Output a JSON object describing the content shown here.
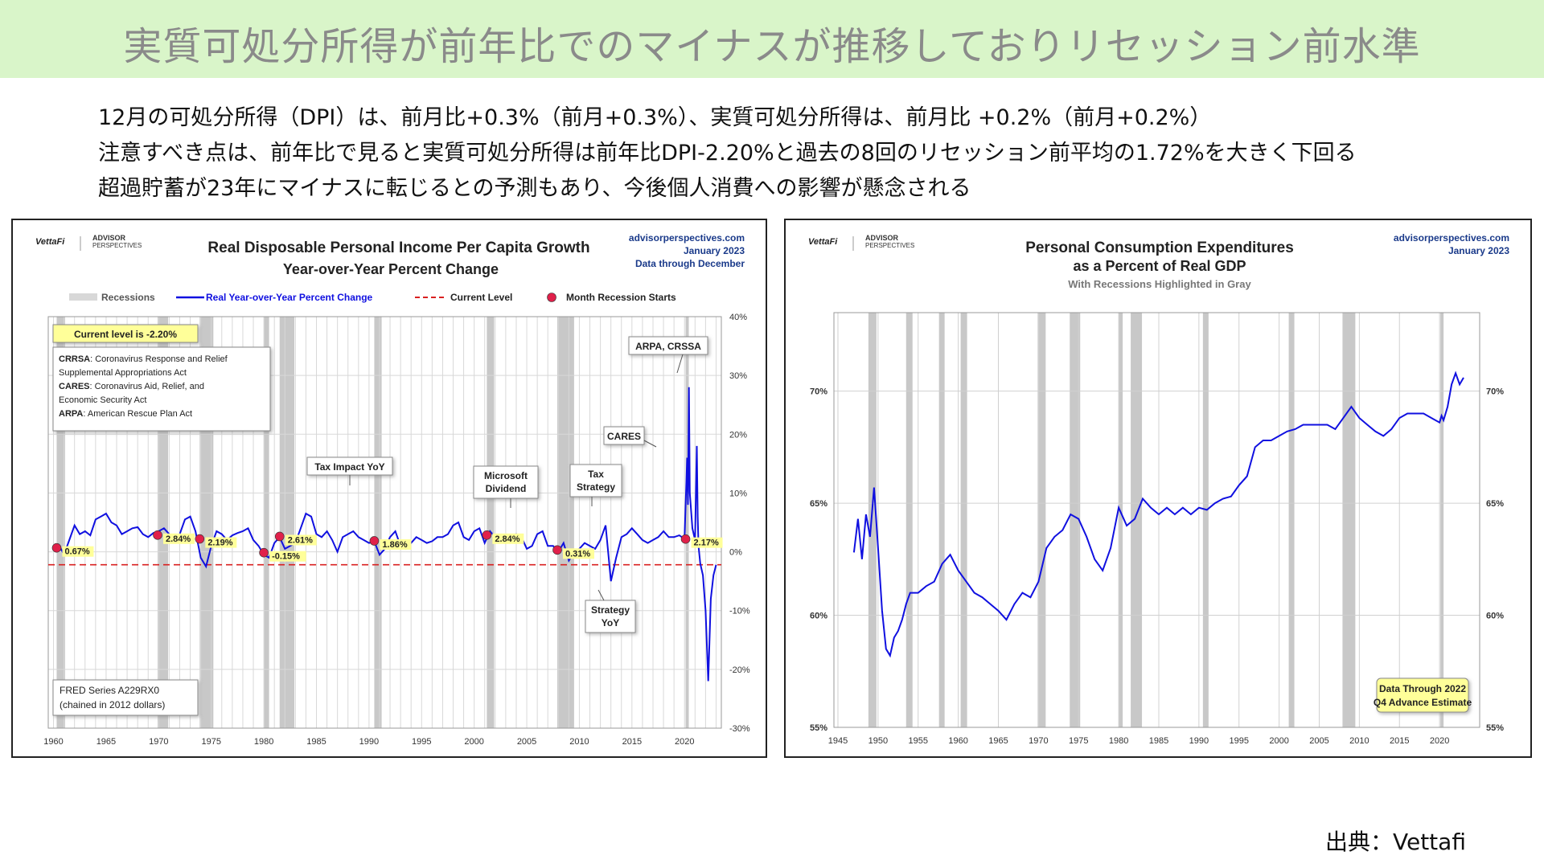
{
  "banner": {
    "title": "実質可処分所得が前年比でのマイナスが推移しておりリセッション前水準"
  },
  "description": {
    "line1": "12月の可処分所得（DPI）は、前月比+0.3%（前月+0.3%）、実質可処分所得は、前月比 +0.2%（前月+0.2%）",
    "line2": "注意すべき点は、前年比で見ると実質可処分所得は前年比DPI-2.20%と過去の8回のリセッション前平均の1.72%を大きく下回る",
    "line3": "超過貯蓄が23年にマイナスに転じるとの予測もあり、今後個人消費への影響が懸念される"
  },
  "source": "出典：Vettafi",
  "colors": {
    "banner_bg": "#d9f5c9",
    "series": "#1010e0",
    "current_level": "#d92020",
    "recession": "#c8c8c8",
    "marker": "#e0204a",
    "callout_yellow": "#ffff99"
  },
  "chart_data": [
    {
      "type": "line",
      "brand": {
        "vettafi": "VettaFi",
        "advisor": "ADVISOR",
        "perspectives": "PERSPECTIVES"
      },
      "title": "Real Disposable Personal Income Per Capita Growth",
      "subtitle": "Year-over-Year Percent Change",
      "site": "advisorperspectives.com",
      "date": "January 2023",
      "data_through": "Data through December",
      "legend": [
        "Recessions",
        "Real Year-over-Year Percent Change",
        "Current Level",
        "Month Recession Starts"
      ],
      "xlim": [
        1959.5,
        2023.5
      ],
      "ylim": [
        -30,
        40
      ],
      "x_ticks": [
        1960,
        1965,
        1970,
        1975,
        1980,
        1985,
        1990,
        1995,
        2000,
        2005,
        2010,
        2015,
        2020
      ],
      "y_ticks": [
        40,
        30,
        20,
        10,
        0,
        -10,
        -20,
        -30
      ],
      "y_tick_labels": [
        "40%",
        "30%",
        "20%",
        "10%",
        "0%",
        "-10%",
        "-20%",
        "-30%"
      ],
      "current_level": -2.2,
      "current_level_label": "Current level is -2.20%",
      "recessions": [
        [
          1960.3,
          1961.1
        ],
        [
          1969.9,
          1970.9
        ],
        [
          1973.9,
          1975.2
        ],
        [
          1980.0,
          1980.5
        ],
        [
          1981.5,
          1982.9
        ],
        [
          1990.5,
          1991.2
        ],
        [
          2001.2,
          2001.9
        ],
        [
          2007.9,
          2009.5
        ],
        [
          2020.1,
          2020.3
        ]
      ],
      "recession_starts": [
        {
          "x": 1960.3,
          "y": 0.67,
          "label": "0.67%"
        },
        {
          "x": 1969.9,
          "y": 2.84,
          "label": "2.84%"
        },
        {
          "x": 1973.9,
          "y": 2.19,
          "label": "2.19%"
        },
        {
          "x": 1980.0,
          "y": -0.15,
          "label": "-0.15%"
        },
        {
          "x": 1981.5,
          "y": 2.61,
          "label": "2.61%"
        },
        {
          "x": 1990.5,
          "y": 1.86,
          "label": "1.86%"
        },
        {
          "x": 2001.2,
          "y": 2.84,
          "label": "2.84%"
        },
        {
          "x": 2007.9,
          "y": 0.31,
          "label": "0.31%"
        },
        {
          "x": 2020.1,
          "y": 2.17,
          "label": "2.17%"
        }
      ],
      "series": [
        {
          "name": "Real Year-over-Year Percent Change",
          "x": [
            1960.0,
            1960.5,
            1961.0,
            1961.5,
            1962.0,
            1962.5,
            1963.0,
            1963.5,
            1964.0,
            1964.5,
            1965.0,
            1965.5,
            1966.0,
            1966.5,
            1967.0,
            1967.5,
            1968.0,
            1968.5,
            1969.0,
            1969.5,
            1970.0,
            1970.5,
            1971.0,
            1971.5,
            1972.0,
            1972.5,
            1973.0,
            1973.5,
            1974.0,
            1974.5,
            1975.0,
            1975.5,
            1976.0,
            1976.5,
            1977.0,
            1977.5,
            1978.0,
            1978.5,
            1979.0,
            1979.5,
            1980.0,
            1980.5,
            1981.0,
            1981.5,
            1982.0,
            1982.5,
            1983.0,
            1983.5,
            1984.0,
            1984.5,
            1985.0,
            1985.5,
            1986.0,
            1986.5,
            1987.0,
            1987.5,
            1988.0,
            1988.5,
            1989.0,
            1989.5,
            1990.0,
            1990.5,
            1991.0,
            1991.5,
            1992.0,
            1992.5,
            1993.0,
            1993.5,
            1994.0,
            1994.5,
            1995.0,
            1995.5,
            1996.0,
            1996.5,
            1997.0,
            1997.5,
            1998.0,
            1998.5,
            1999.0,
            1999.5,
            2000.0,
            2000.5,
            2001.0,
            2001.5,
            2002.0,
            2002.5,
            2003.0,
            2003.5,
            2004.0,
            2004.5,
            2005.0,
            2005.5,
            2006.0,
            2006.5,
            2007.0,
            2007.5,
            2008.0,
            2008.5,
            2009.0,
            2009.5,
            2010.0,
            2010.5,
            2011.0,
            2011.5,
            2012.0,
            2012.5,
            2013.0,
            2013.5,
            2014.0,
            2014.5,
            2015.0,
            2015.5,
            2016.0,
            2016.5,
            2017.0,
            2017.5,
            2018.0,
            2018.5,
            2019.0,
            2019.5,
            2020.0,
            2020.25,
            2020.33,
            2020.42,
            2020.5,
            2020.75,
            2021.0,
            2021.17,
            2021.25,
            2021.33,
            2021.5,
            2021.75,
            2022.0,
            2022.25,
            2022.5,
            2022.75,
            2023.0
          ],
          "y": [
            0.8,
            1.2,
            -0.5,
            2.0,
            4.5,
            3.0,
            3.5,
            2.8,
            5.5,
            6.0,
            6.5,
            5.0,
            4.5,
            3.0,
            3.5,
            4.0,
            4.2,
            3.0,
            2.5,
            3.2,
            3.5,
            4.0,
            3.0,
            2.5,
            3.0,
            5.5,
            6.0,
            3.5,
            -1.0,
            -2.5,
            1.0,
            3.5,
            3.0,
            2.0,
            2.8,
            3.2,
            3.5,
            4.0,
            2.0,
            1.0,
            -0.5,
            -1.0,
            1.5,
            2.5,
            0.5,
            1.0,
            1.5,
            4.0,
            6.5,
            6.0,
            3.0,
            2.5,
            3.5,
            2.0,
            0.0,
            2.5,
            3.0,
            3.5,
            2.5,
            2.0,
            1.5,
            1.8,
            -0.5,
            0.5,
            2.5,
            3.5,
            1.0,
            0.5,
            1.5,
            2.5,
            2.0,
            1.5,
            1.8,
            2.5,
            2.5,
            3.0,
            4.5,
            5.0,
            2.5,
            2.0,
            3.5,
            4.0,
            1.5,
            3.5,
            2.5,
            2.0,
            1.5,
            2.0,
            3.0,
            2.5,
            0.5,
            1.0,
            3.0,
            3.5,
            1.0,
            1.0,
            0.0,
            1.5,
            -1.5,
            0.0,
            0.5,
            1.5,
            1.0,
            0.5,
            2.0,
            4.5,
            -5.0,
            -1.0,
            2.5,
            3.0,
            4.0,
            3.0,
            2.0,
            1.5,
            2.0,
            2.5,
            3.5,
            2.5,
            2.5,
            2.8,
            2.2,
            16.0,
            8.0,
            28.0,
            10.0,
            4.0,
            2.0,
            18.0,
            6.0,
            1.0,
            -2.0,
            -4.0,
            -10.0,
            -22.0,
            -8.0,
            -4.0,
            -2.2
          ]
        }
      ],
      "callouts": {
        "acts": [
          {
            "abbr": "CRRSA",
            "text": ": Coronavirus Response and Relief",
            "cont": "Supplemental Appropriations Act"
          },
          {
            "abbr": "CARES",
            "text": ": Coronavirus Aid, Relief, and",
            "cont": "Economic Security Act"
          },
          {
            "abbr": "ARPA",
            "text": ": American Rescue Plan Act",
            "cont": ""
          }
        ],
        "tax_impact": "Tax Impact YoY",
        "microsoft_line1": "Microsoft",
        "microsoft_line2": "Dividend",
        "tax_strategy_line1": "Tax",
        "tax_strategy_line2": "Strategy",
        "strategy_yoy_line1": "Strategy",
        "strategy_yoy_line2": "YoY",
        "cares": "CARES",
        "arpa": "ARPA, CRSSA",
        "fred_line1": "FRED Series A229RX0",
        "fred_line2": "(chained in 2012 dollars)"
      }
    },
    {
      "type": "line",
      "brand": {
        "vettafi": "VettaFi",
        "advisor": "ADVISOR",
        "perspectives": "PERSPECTIVES"
      },
      "title": "Personal Consumption Expenditures",
      "title_line2": "as a Percent of Real GDP",
      "subtitle": "With Recessions Highlighted in Gray",
      "site": "advisorperspectives.com",
      "date": "January 2023",
      "note_line1": "Data Through 2022",
      "note_line2": "Q4 Advance Estimate",
      "xlim": [
        1944.5,
        2025
      ],
      "ylim": [
        55,
        73.5
      ],
      "x_ticks": [
        1945,
        1950,
        1955,
        1960,
        1965,
        1970,
        1975,
        1980,
        1985,
        1990,
        1995,
        2000,
        2005,
        2010,
        2015,
        2020
      ],
      "y_ticks": [
        70,
        65,
        60,
        55
      ],
      "y_tick_labels": [
        "70%",
        "65%",
        "60%",
        "55%"
      ],
      "recessions": [
        [
          1948.8,
          1949.8
        ],
        [
          1953.5,
          1954.3
        ],
        [
          1957.6,
          1958.3
        ],
        [
          1960.3,
          1961.1
        ],
        [
          1969.9,
          1970.9
        ],
        [
          1973.9,
          1975.2
        ],
        [
          1980.0,
          1980.5
        ],
        [
          1981.5,
          1982.9
        ],
        [
          1990.5,
          1991.2
        ],
        [
          2001.2,
          2001.9
        ],
        [
          2007.9,
          2009.5
        ],
        [
          2020.1,
          2020.3
        ]
      ],
      "series": [
        {
          "name": "",
          "x": [
            1947.0,
            1947.5,
            1948.0,
            1948.5,
            1949.0,
            1949.5,
            1950.0,
            1950.5,
            1951.0,
            1951.5,
            1952.0,
            1952.5,
            1953.0,
            1953.5,
            1954.0,
            1955.0,
            1956.0,
            1957.0,
            1958.0,
            1959.0,
            1960.0,
            1961.0,
            1962.0,
            1963.0,
            1964.0,
            1965.0,
            1966.0,
            1967.0,
            1968.0,
            1969.0,
            1970.0,
            1971.0,
            1972.0,
            1973.0,
            1974.0,
            1975.0,
            1976.0,
            1977.0,
            1978.0,
            1979.0,
            1980.0,
            1981.0,
            1982.0,
            1983.0,
            1984.0,
            1985.0,
            1986.0,
            1987.0,
            1988.0,
            1989.0,
            1990.0,
            1991.0,
            1992.0,
            1993.0,
            1994.0,
            1995.0,
            1996.0,
            1997.0,
            1998.0,
            1999.0,
            2000.0,
            2001.0,
            2002.0,
            2003.0,
            2004.0,
            2005.0,
            2006.0,
            2007.0,
            2008.0,
            2009.0,
            2010.0,
            2011.0,
            2012.0,
            2013.0,
            2014.0,
            2015.0,
            2016.0,
            2017.0,
            2018.0,
            2019.0,
            2020.0,
            2020.25,
            2020.5,
            2021.0,
            2021.5,
            2022.0,
            2022.5,
            2023.0
          ],
          "y": [
            62.8,
            64.3,
            62.5,
            64.5,
            63.5,
            65.7,
            63.0,
            60.2,
            58.5,
            58.2,
            59.0,
            59.3,
            59.8,
            60.5,
            61.0,
            61.0,
            61.3,
            61.5,
            62.3,
            62.7,
            62.0,
            61.5,
            61.0,
            60.8,
            60.5,
            60.2,
            59.8,
            60.5,
            61.0,
            60.8,
            61.5,
            63.0,
            63.5,
            63.8,
            64.5,
            64.3,
            63.5,
            62.5,
            62.0,
            63.0,
            64.8,
            64.0,
            64.3,
            65.2,
            64.8,
            64.5,
            64.8,
            64.5,
            64.8,
            64.5,
            64.8,
            64.7,
            65.0,
            65.2,
            65.3,
            65.8,
            66.2,
            67.5,
            67.8,
            67.8,
            68.0,
            68.2,
            68.3,
            68.5,
            68.5,
            68.5,
            68.5,
            68.3,
            68.8,
            69.3,
            68.8,
            68.5,
            68.2,
            68.0,
            68.3,
            68.8,
            69.0,
            69.0,
            69.0,
            68.8,
            68.6,
            68.9,
            68.7,
            69.3,
            70.3,
            70.8,
            70.3,
            70.6
          ]
        }
      ]
    }
  ]
}
